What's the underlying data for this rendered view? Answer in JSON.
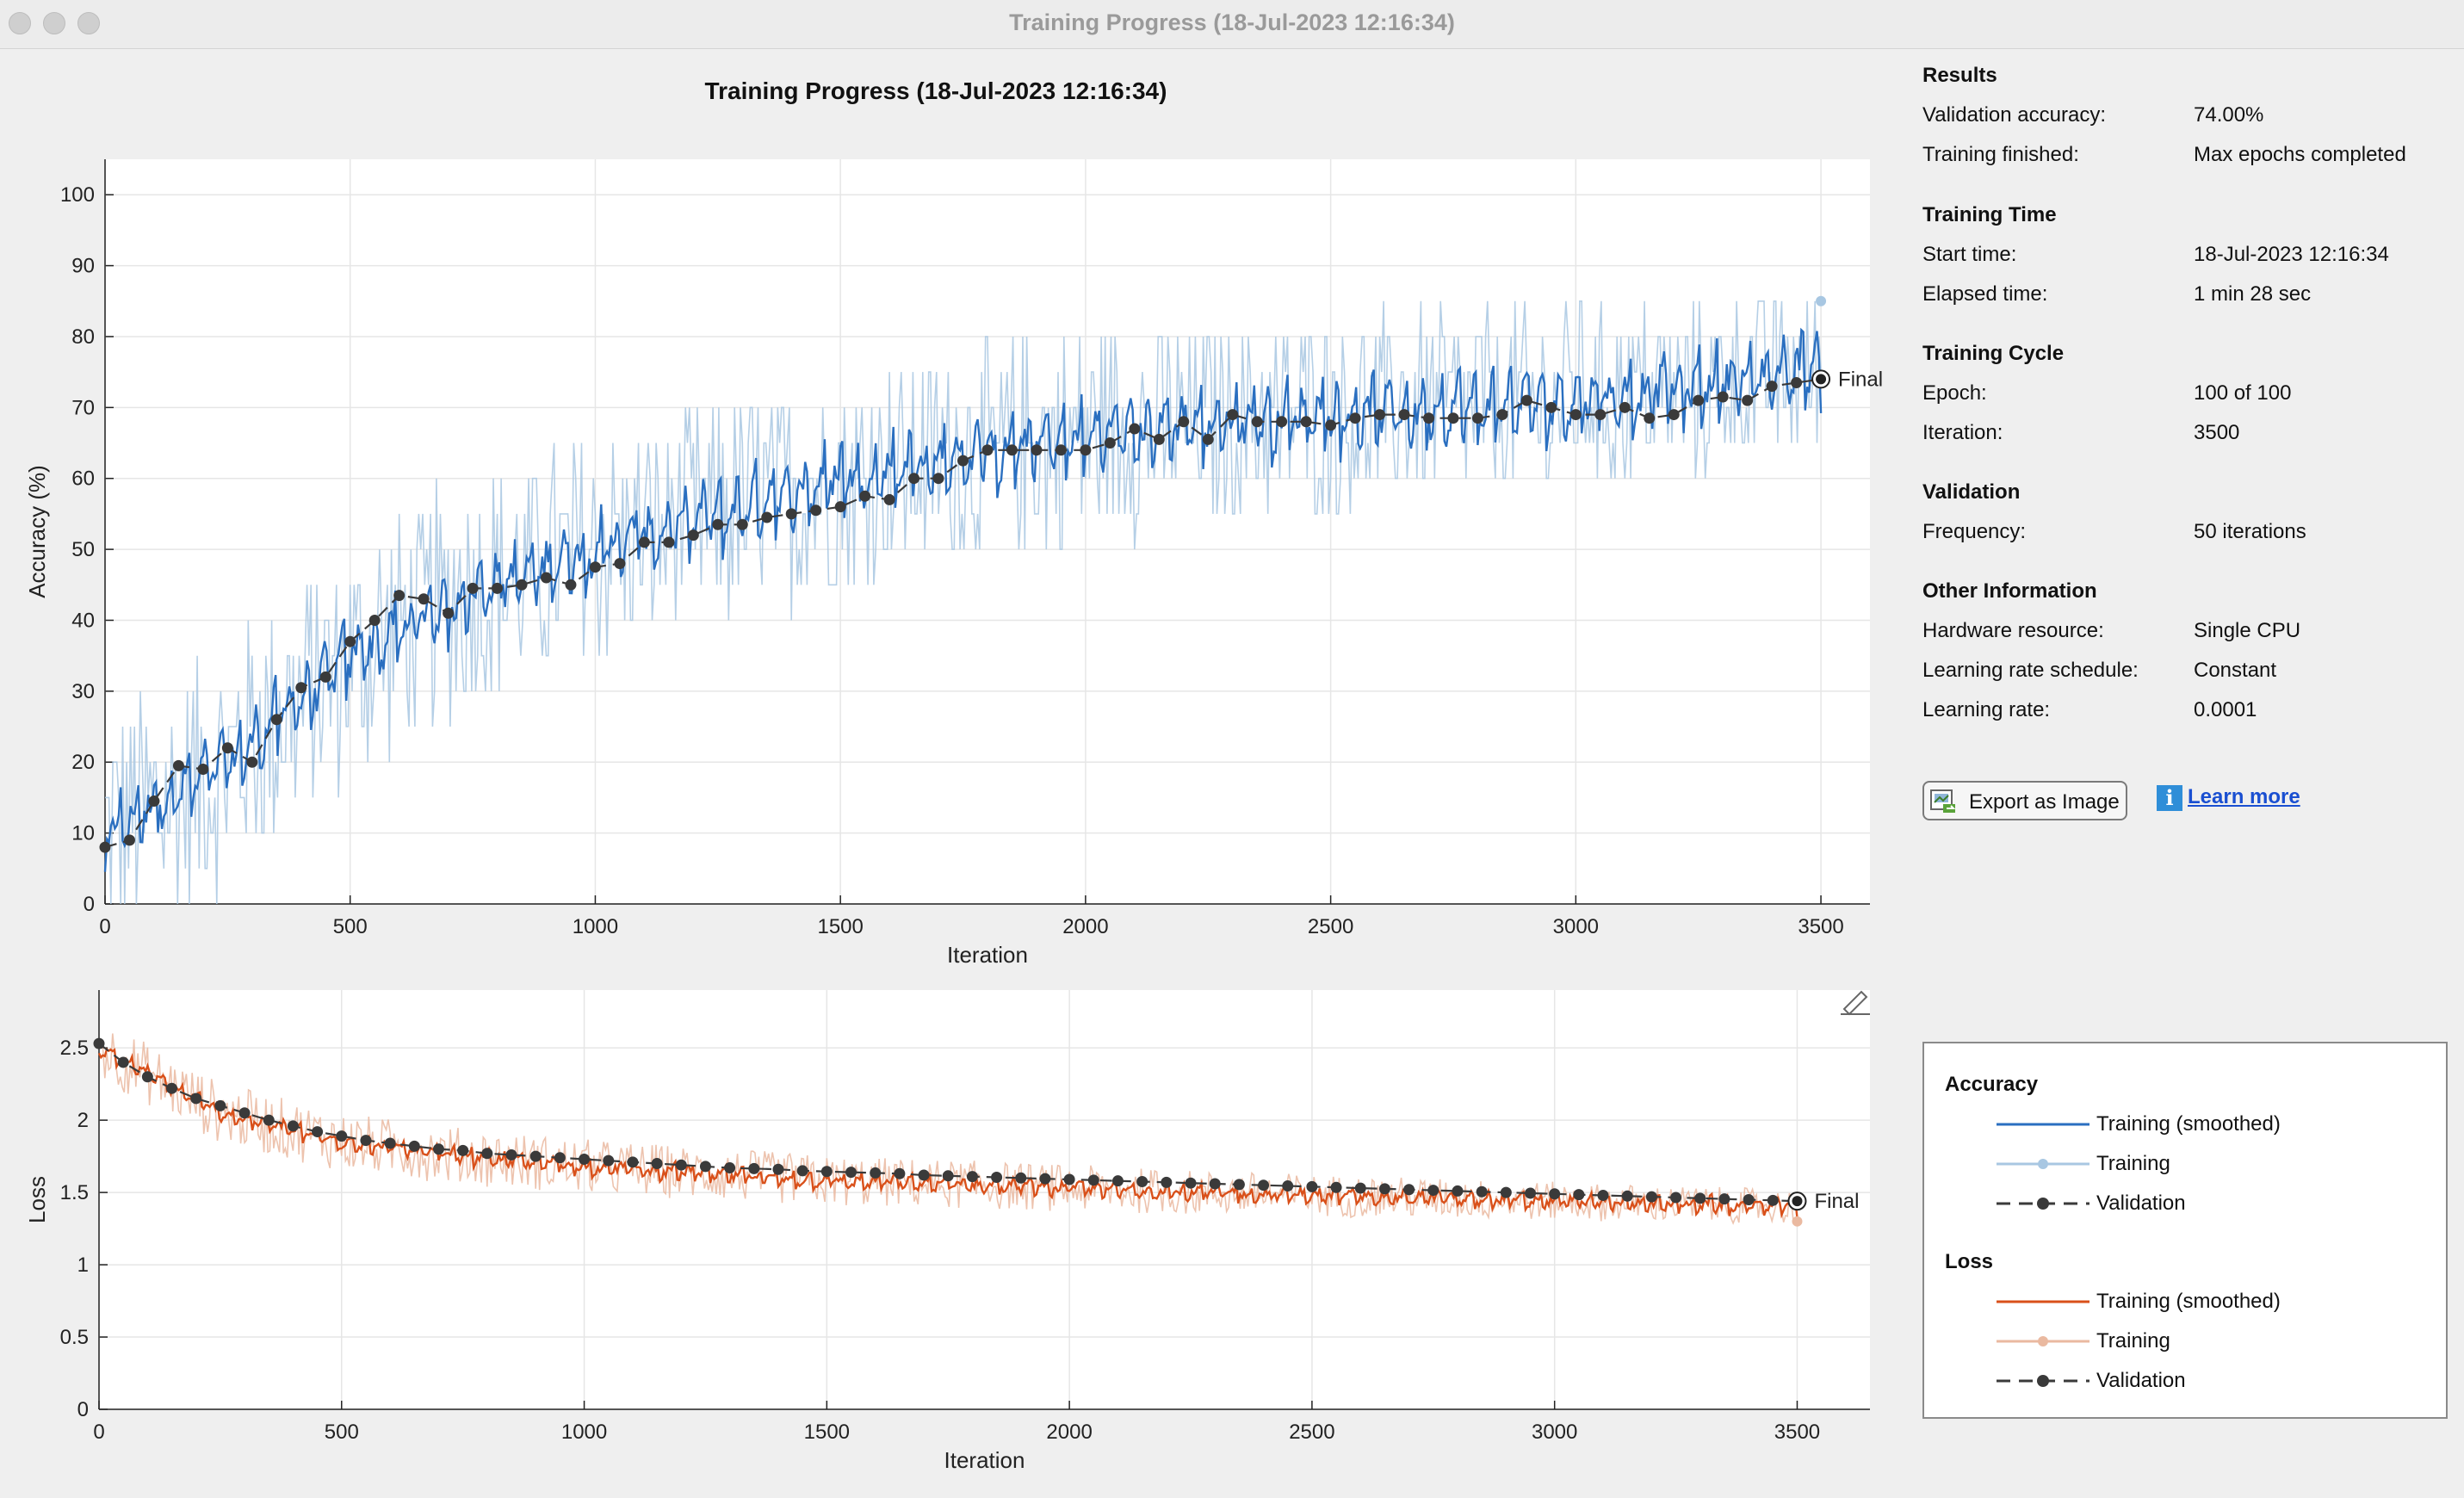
{
  "window": {
    "title": "Training Progress (18-Jul-2023 12:16:34)"
  },
  "plot_title": "Training Progress (18-Jul-2023 12:16:34)",
  "colors": {
    "acc_smoothed": "#2a6fc0",
    "acc_training": "#a8c7e2",
    "loss_smoothed": "#d9501a",
    "loss_training": "#eab9a0",
    "validation": "#3a3a3a"
  },
  "results": {
    "title": "Results",
    "rows": [
      {
        "label": "Validation accuracy:",
        "value": "74.00%"
      },
      {
        "label": "Training finished:",
        "value": "Max epochs completed"
      }
    ]
  },
  "training_time": {
    "title": "Training Time",
    "rows": [
      {
        "label": "Start time:",
        "value": "18-Jul-2023 12:16:34"
      },
      {
        "label": "Elapsed time:",
        "value": "1 min 28 sec"
      }
    ]
  },
  "training_cycle": {
    "title": "Training Cycle",
    "rows": [
      {
        "label": "Epoch:",
        "value": "100 of 100"
      },
      {
        "label": "Iteration:",
        "value": "3500"
      }
    ]
  },
  "validation": {
    "title": "Validation",
    "rows": [
      {
        "label": "Frequency:",
        "value": "50 iterations"
      }
    ]
  },
  "other": {
    "title": "Other Information",
    "rows": [
      {
        "label": "Hardware resource:",
        "value": "Single CPU"
      },
      {
        "label": "Learning rate schedule:",
        "value": "Constant"
      },
      {
        "label": "Learning rate:",
        "value": "0.0001"
      }
    ]
  },
  "buttons": {
    "export": "Export as Image",
    "learn_more": "Learn more"
  },
  "legend": {
    "accuracy_title": "Accuracy",
    "loss_title": "Loss",
    "items": [
      "Training (smoothed)",
      "Training",
      "Validation"
    ]
  },
  "chart_data": [
    {
      "type": "line",
      "ylabel": "Accuracy (%)",
      "xlabel": "Iteration",
      "xlim": [
        0,
        3600
      ],
      "ylim": [
        0,
        105
      ],
      "xticks": [
        0,
        500,
        1000,
        1500,
        2000,
        2500,
        3000,
        3500
      ],
      "yticks": [
        0,
        10,
        20,
        30,
        40,
        50,
        60,
        70,
        80,
        90,
        100
      ],
      "grid": true,
      "final_label": "Final",
      "series": [
        {
          "name": "Training (smoothed)",
          "x": [
            0,
            250,
            500,
            750,
            1000,
            1250,
            1500,
            1750,
            2000,
            2250,
            2500,
            2750,
            3000,
            3250,
            3500
          ],
          "values": [
            10,
            20,
            35,
            44,
            50,
            55,
            60,
            63,
            66,
            68,
            69,
            70,
            71,
            73,
            76
          ]
        },
        {
          "name": "Training",
          "x": [
            3500
          ],
          "values": [
            85
          ]
        },
        {
          "name": "Validation",
          "x": [
            0,
            50,
            100,
            150,
            200,
            250,
            300,
            350,
            400,
            450,
            500,
            550,
            600,
            650,
            700,
            750,
            800,
            850,
            900,
            950,
            1000,
            1050,
            1100,
            1150,
            1200,
            1250,
            1300,
            1350,
            1400,
            1450,
            1500,
            1550,
            1600,
            1650,
            1700,
            1750,
            1800,
            1850,
            1900,
            1950,
            2000,
            2050,
            2100,
            2150,
            2200,
            2250,
            2300,
            2350,
            2400,
            2450,
            2500,
            2550,
            2600,
            2650,
            2700,
            2750,
            2800,
            2850,
            2900,
            2950,
            3000,
            3050,
            3100,
            3150,
            3200,
            3250,
            3300,
            3350,
            3400,
            3450,
            3500
          ],
          "values": [
            8,
            9,
            14.5,
            19.5,
            19,
            22,
            20,
            26,
            30.5,
            32,
            37,
            40,
            43.5,
            43,
            41,
            44.5,
            44.5,
            45,
            46,
            45,
            47.5,
            48,
            51,
            51,
            52,
            53.5,
            53.5,
            54.5,
            55,
            55.5,
            56,
            57.5,
            57,
            60,
            60,
            62.5,
            64,
            64,
            64,
            64,
            64,
            65,
            67,
            65.5,
            68,
            65.5,
            69,
            68,
            68,
            68,
            67.5,
            68.5,
            69,
            69,
            68.5,
            68.5,
            68.5,
            69,
            71,
            70,
            69,
            69,
            70,
            68.5,
            69,
            71,
            71.5,
            71,
            73,
            73.5,
            74
          ]
        }
      ]
    },
    {
      "type": "line",
      "ylabel": "Loss",
      "xlabel": "Iteration",
      "xlim": [
        0,
        3650
      ],
      "ylim": [
        0,
        2.9
      ],
      "xticks": [
        0,
        500,
        1000,
        1500,
        2000,
        2500,
        3000,
        3500
      ],
      "yticks": [
        0,
        0.5,
        1,
        1.5,
        2,
        2.5
      ],
      "grid": true,
      "final_label": "Final",
      "series": [
        {
          "name": "Training (smoothed)",
          "x": [
            0,
            250,
            500,
            750,
            1000,
            1250,
            1500,
            1750,
            2000,
            2250,
            2500,
            2750,
            3000,
            3250,
            3500
          ],
          "values": [
            2.5,
            2.05,
            1.85,
            1.75,
            1.68,
            1.63,
            1.58,
            1.56,
            1.53,
            1.5,
            1.48,
            1.46,
            1.44,
            1.42,
            1.4
          ]
        },
        {
          "name": "Training",
          "x": [
            3500
          ],
          "values": [
            1.3
          ]
        },
        {
          "name": "Validation",
          "x": [
            0,
            50,
            100,
            150,
            200,
            250,
            300,
            350,
            400,
            450,
            500,
            550,
            600,
            650,
            700,
            750,
            800,
            850,
            900,
            950,
            1000,
            1050,
            1100,
            1150,
            1200,
            1250,
            1300,
            1350,
            1400,
            1450,
            1500,
            1550,
            1600,
            1650,
            1700,
            1750,
            1800,
            1850,
            1900,
            1950,
            2000,
            2050,
            2100,
            2150,
            2200,
            2250,
            2300,
            2350,
            2400,
            2450,
            2500,
            2550,
            2600,
            2650,
            2700,
            2750,
            2800,
            2850,
            2900,
            2950,
            3000,
            3050,
            3100,
            3150,
            3200,
            3250,
            3300,
            3350,
            3400,
            3450,
            3500
          ],
          "values": [
            2.53,
            2.4,
            2.3,
            2.22,
            2.15,
            2.1,
            2.05,
            2,
            1.96,
            1.92,
            1.89,
            1.86,
            1.84,
            1.82,
            1.8,
            1.79,
            1.77,
            1.76,
            1.75,
            1.74,
            1.73,
            1.72,
            1.71,
            1.7,
            1.69,
            1.68,
            1.67,
            1.665,
            1.66,
            1.65,
            1.645,
            1.64,
            1.635,
            1.63,
            1.62,
            1.615,
            1.61,
            1.605,
            1.6,
            1.595,
            1.59,
            1.585,
            1.58,
            1.575,
            1.57,
            1.565,
            1.56,
            1.555,
            1.55,
            1.545,
            1.54,
            1.535,
            1.53,
            1.525,
            1.52,
            1.515,
            1.51,
            1.505,
            1.5,
            1.495,
            1.49,
            1.485,
            1.48,
            1.475,
            1.47,
            1.465,
            1.46,
            1.455,
            1.45,
            1.445,
            1.44
          ]
        }
      ]
    }
  ]
}
